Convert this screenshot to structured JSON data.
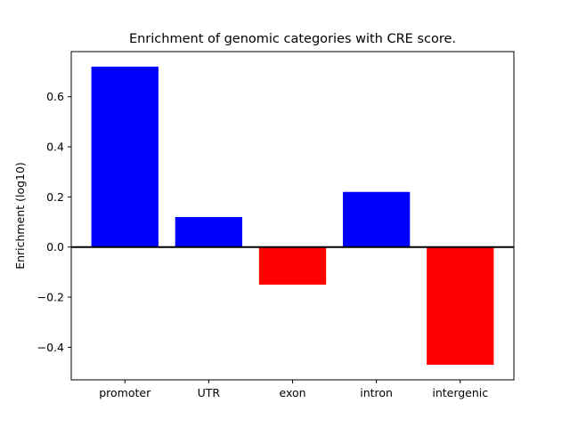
{
  "chart_data": {
    "type": "bar",
    "title": "Enrichment of genomic categories with CRE score.",
    "xlabel": "",
    "ylabel": "Enrichment (log10)",
    "categories": [
      "promoter",
      "UTR",
      "exon",
      "intron",
      "intergenic"
    ],
    "values": [
      0.72,
      0.12,
      -0.15,
      0.22,
      -0.47
    ],
    "positive_color": "#0000ff",
    "negative_color": "#ff0000",
    "bar_width": 0.8,
    "xlim": [
      -0.64,
      4.64
    ],
    "ylim": [
      -0.53,
      0.78
    ],
    "yticks": [
      0.6,
      0.4,
      0.2,
      0.0,
      -0.2,
      -0.4
    ],
    "ytick_labels": [
      "0.6",
      "0.4",
      "0.2",
      "0.0",
      "−0.2",
      "−0.4"
    ],
    "zero_line": true,
    "grid": false,
    "legend": null,
    "background_color": "#ffffff",
    "frame_color": "#000000"
  }
}
